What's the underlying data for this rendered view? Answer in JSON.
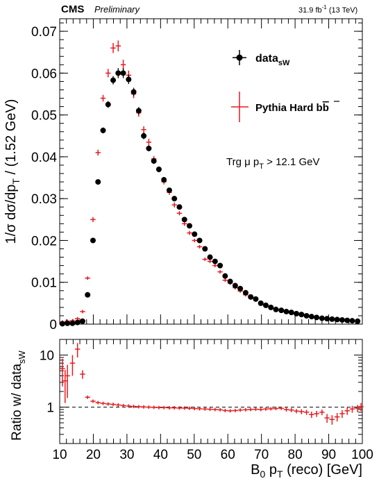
{
  "header": {
    "experiment": "CMS",
    "status": "Preliminary",
    "lumi_value": "31.9 fb",
    "lumi_sup": "-1",
    "lumi_energy": "(13 TeV)"
  },
  "annotation": {
    "trigger_prefix": "Trg μ p",
    "trigger_sub": "T",
    "trigger_suffix": " > 12.1 GeV"
  },
  "colors": {
    "data": "#000000",
    "mc": "#e8191e",
    "dashed": "#000000"
  },
  "chart_data": [
    {
      "type": "scatter",
      "title": "",
      "ylabel_parts": {
        "main": "1/σ dσ/dp",
        "sub": "T",
        "tail": " / (1.52 GeV)"
      },
      "xlim": [
        10,
        100
      ],
      "ylim": [
        0,
        0.073
      ],
      "yticks": [
        0,
        0.01,
        0.02,
        0.03,
        0.04,
        0.05,
        0.06,
        0.07
      ],
      "ytick_labels": [
        "0",
        "0.01",
        "0.02",
        "0.03",
        "0.04",
        "0.05",
        "0.06",
        "0.07"
      ],
      "legend": [
        {
          "label_main": "data",
          "label_sub": "sW",
          "marker": "circle",
          "color": "#000000"
        },
        {
          "label_main": "Pythia Hard b",
          "label_bar": "b",
          "marker": "cross",
          "color": "#e8191e"
        }
      ],
      "series": [
        {
          "name": "data_sW",
          "x": [
            10.8,
            12.3,
            13.8,
            15.3,
            16.8,
            18.3,
            19.9,
            21.4,
            22.9,
            24.4,
            25.9,
            27.4,
            28.9,
            30.5,
            32.0,
            33.5,
            35.0,
            36.5,
            38.0,
            39.5,
            41.0,
            42.6,
            44.1,
            45.6,
            47.1,
            48.6,
            50.1,
            51.6,
            53.2,
            54.7,
            56.2,
            57.7,
            59.2,
            60.7,
            62.2,
            63.7,
            65.3,
            66.8,
            68.3,
            69.8,
            71.3,
            72.8,
            74.3,
            75.9,
            77.4,
            78.9,
            80.4,
            81.9,
            83.4,
            84.9,
            86.4,
            88.0,
            89.5,
            91.0,
            92.5,
            94.0,
            95.5,
            97.0,
            98.6
          ],
          "y": [
            0.0001,
            0.0002,
            0.0002,
            0.0004,
            0.0007,
            0.007,
            0.02,
            0.034,
            0.0463,
            0.0525,
            0.0583,
            0.06,
            0.06,
            0.0585,
            0.0555,
            0.051,
            0.045,
            0.042,
            0.039,
            0.037,
            0.0345,
            0.032,
            0.03,
            0.028,
            0.025,
            0.0235,
            0.0215,
            0.02,
            0.018,
            0.016,
            0.015,
            0.014,
            0.0115,
            0.0102,
            0.0092,
            0.0085,
            0.0075,
            0.0065,
            0.006,
            0.005,
            0.0045,
            0.004,
            0.0035,
            0.0033,
            0.003,
            0.0028,
            0.0025,
            0.0023,
            0.002,
            0.0018,
            0.0016,
            0.0014,
            0.0013,
            0.0012,
            0.0011,
            0.001,
            0.0009,
            0.0008,
            0.0007
          ],
          "yerr": [
            0.0003,
            0.0003,
            0.0003,
            0.0003,
            0.0004,
            0.0004,
            0.0005,
            0.0006,
            0.0007,
            0.0008,
            0.001,
            0.0012,
            0.0012,
            0.0011,
            0.001,
            0.0009,
            0.0008,
            0.0007,
            0.0007,
            0.0006,
            0.0006,
            0.0006,
            0.0005,
            0.0005,
            0.0005,
            0.0004,
            0.0004,
            0.0004,
            0.0004,
            0.0003,
            0.0003,
            0.0003,
            0.0003,
            0.0003,
            0.0003,
            0.0003,
            0.0002,
            0.0002,
            0.0002,
            0.0002,
            0.0002,
            0.0002,
            0.0002,
            0.0002,
            0.0002,
            0.0002,
            0.0002,
            0.0002,
            0.0002,
            0.0002,
            0.0002,
            0.0002,
            0.0002,
            0.0002,
            0.0002,
            0.0002,
            0.0002,
            0.0002,
            0.0002
          ]
        },
        {
          "name": "Pythia Hard bb",
          "x": [
            10.8,
            12.3,
            13.8,
            15.3,
            16.8,
            18.3,
            19.9,
            21.4,
            22.9,
            24.4,
            25.9,
            27.4,
            28.9,
            30.5,
            32.0,
            33.5,
            35.0,
            36.5,
            38.0,
            39.5,
            41.0,
            42.6,
            44.1,
            45.6,
            47.1,
            48.6,
            50.1,
            51.6,
            53.2,
            54.7,
            56.2,
            57.7,
            59.2,
            60.7,
            62.2,
            63.7,
            65.3,
            66.8,
            68.3,
            69.8,
            71.3,
            72.8,
            74.3,
            75.9,
            77.4,
            78.9,
            80.4,
            81.9,
            83.4,
            84.9,
            86.4,
            88.0,
            89.5,
            91.0,
            92.5,
            94.0,
            95.5,
            97.0,
            98.6
          ],
          "y": [
            0.0005,
            0.0007,
            0.0008,
            0.0013,
            0.003,
            0.011,
            0.025,
            0.041,
            0.054,
            0.06,
            0.066,
            0.0665,
            0.062,
            0.0595,
            0.055,
            0.0505,
            0.0465,
            0.0435,
            0.0395,
            0.037,
            0.034,
            0.0315,
            0.0285,
            0.0265,
            0.024,
            0.0218,
            0.02,
            0.0185,
            0.0155,
            0.015,
            0.014,
            0.0125,
            0.0105,
            0.0098,
            0.0087,
            0.0079,
            0.007,
            0.0065,
            0.006,
            0.0052,
            0.0047,
            0.0042,
            0.0038,
            0.0034,
            0.003,
            0.0027,
            0.0025,
            0.0022,
            0.002,
            0.0018,
            0.0016,
            0.0015,
            0.0013,
            0.0012,
            0.0011,
            0.001,
            0.0009,
            0.0008,
            0.0008
          ],
          "yerr": [
            0.0003,
            0.0003,
            0.0003,
            0.0003,
            0.0004,
            0.0004,
            0.0006,
            0.0007,
            0.0008,
            0.001,
            0.0012,
            0.0013,
            0.0012,
            0.0011,
            0.001,
            0.0009,
            0.0008,
            0.0008,
            0.0007,
            0.0007,
            0.0006,
            0.0006,
            0.0006,
            0.0005,
            0.0005,
            0.0005,
            0.0004,
            0.0004,
            0.0004,
            0.0004,
            0.0003,
            0.0003,
            0.0003,
            0.0003,
            0.0003,
            0.0003,
            0.0003,
            0.0003,
            0.0002,
            0.0002,
            0.0002,
            0.0002,
            0.0002,
            0.0002,
            0.0002,
            0.0002,
            0.0002,
            0.0002,
            0.0002,
            0.0002,
            0.0002,
            0.0002,
            0.0002,
            0.0002,
            0.0002,
            0.0002,
            0.0002,
            0.0002,
            0.0002
          ]
        }
      ]
    },
    {
      "type": "scatter",
      "title": "",
      "yscale": "log",
      "ylabel_parts": {
        "main": "Ratio w/ data",
        "sub": "sW"
      },
      "xlabel_parts": {
        "main": "B",
        "sub": "0",
        "mid": " p",
        "sub2": "T",
        "tail": " (reco) [GeV]"
      },
      "xlim": [
        10,
        100
      ],
      "ylim": [
        0.2,
        20
      ],
      "xticks": [
        10,
        20,
        30,
        40,
        50,
        60,
        70,
        80,
        90,
        100
      ],
      "xtick_labels": [
        "10",
        "20",
        "30",
        "40",
        "50",
        "60",
        "70",
        "80",
        "90",
        "100"
      ],
      "yticks": [
        1,
        10
      ],
      "ytick_labels": [
        "1",
        "10"
      ],
      "reference_line": 1,
      "series": [
        {
          "name": "ratio",
          "x": [
            10.8,
            11.6,
            12.3,
            13.8,
            15.3,
            16.8,
            18.3,
            19.9,
            21.4,
            22.9,
            24.4,
            25.9,
            27.4,
            28.9,
            30.5,
            32.0,
            33.5,
            35.0,
            36.5,
            38.0,
            39.5,
            41.0,
            42.6,
            44.1,
            45.6,
            47.1,
            48.6,
            50.1,
            51.6,
            53.2,
            54.7,
            56.2,
            57.7,
            59.2,
            60.7,
            62.2,
            63.7,
            65.3,
            66.8,
            68.3,
            69.8,
            71.3,
            72.8,
            74.3,
            75.9,
            77.4,
            78.9,
            80.4,
            81.9,
            83.4,
            84.9,
            86.4,
            88.0,
            89.5,
            91.0,
            92.5,
            94.0,
            95.5,
            97.0,
            98.6,
            99.6
          ],
          "y": [
            5.5,
            3.2,
            4.0,
            7.0,
            13.0,
            4.3,
            1.55,
            1.3,
            1.22,
            1.18,
            1.15,
            1.13,
            1.1,
            1.07,
            1.05,
            1.03,
            1.02,
            1.01,
            1.0,
            0.99,
            0.98,
            0.98,
            0.97,
            0.97,
            0.96,
            0.96,
            0.95,
            0.94,
            0.93,
            0.92,
            0.91,
            0.9,
            0.89,
            0.86,
            0.85,
            0.86,
            0.88,
            0.89,
            0.9,
            0.91,
            0.9,
            0.92,
            0.93,
            0.94,
            0.95,
            0.9,
            0.88,
            0.84,
            0.82,
            0.8,
            0.72,
            0.75,
            0.8,
            0.62,
            0.58,
            0.65,
            0.75,
            0.85,
            0.92,
            0.95,
            1.02
          ],
          "yerr": [
            3.0,
            2.0,
            2.5,
            3.0,
            4.0,
            0.8,
            0.1,
            0.05,
            0.04,
            0.04,
            0.03,
            0.03,
            0.03,
            0.03,
            0.03,
            0.03,
            0.03,
            0.03,
            0.03,
            0.03,
            0.03,
            0.03,
            0.03,
            0.03,
            0.03,
            0.03,
            0.03,
            0.03,
            0.04,
            0.04,
            0.04,
            0.04,
            0.04,
            0.04,
            0.05,
            0.05,
            0.05,
            0.05,
            0.06,
            0.06,
            0.06,
            0.06,
            0.07,
            0.07,
            0.07,
            0.08,
            0.08,
            0.08,
            0.09,
            0.09,
            0.1,
            0.1,
            0.1,
            0.12,
            0.12,
            0.12,
            0.13,
            0.14,
            0.14,
            0.15,
            0.18
          ]
        }
      ]
    }
  ]
}
